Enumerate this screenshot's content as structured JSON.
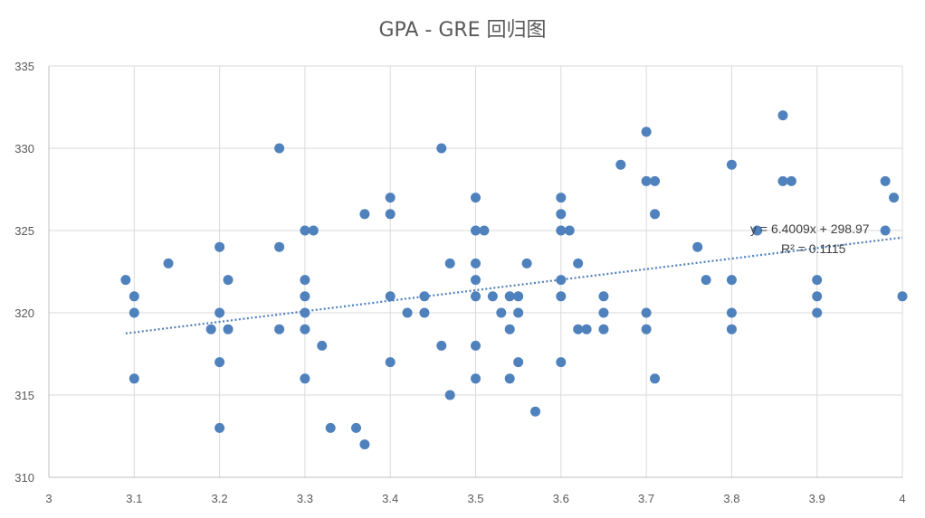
{
  "chart_data": {
    "type": "scatter",
    "title": "GPA - GRE 回归图",
    "xlim": [
      3,
      4
    ],
    "ylim": [
      310,
      335
    ],
    "x_ticks": [
      "3",
      "3.1",
      "3.2",
      "3.3",
      "3.4",
      "3.5",
      "3.6",
      "3.7",
      "3.8",
      "3.9",
      "4"
    ],
    "y_ticks": [
      "310",
      "315",
      "320",
      "325",
      "330",
      "335"
    ],
    "grid": true,
    "marker_color": "#4F81BD",
    "trendline_color": "#4F81BD",
    "trendline": {
      "type": "linear",
      "slope": 6.4009,
      "intercept": 298.97,
      "x_range": [
        3.09,
        4.0
      ],
      "equation": "y = 6.4009x + 298.97",
      "r_squared": "R² = 0.1115"
    },
    "points": [
      [
        3.09,
        322
      ],
      [
        3.1,
        321
      ],
      [
        3.1,
        320
      ],
      [
        3.1,
        316
      ],
      [
        3.14,
        323
      ],
      [
        3.19,
        319
      ],
      [
        3.2,
        324
      ],
      [
        3.2,
        320
      ],
      [
        3.2,
        317
      ],
      [
        3.2,
        313
      ],
      [
        3.21,
        322
      ],
      [
        3.21,
        319
      ],
      [
        3.27,
        330
      ],
      [
        3.27,
        324
      ],
      [
        3.27,
        319
      ],
      [
        3.3,
        325
      ],
      [
        3.31,
        325
      ],
      [
        3.3,
        322
      ],
      [
        3.3,
        321
      ],
      [
        3.3,
        320
      ],
      [
        3.3,
        319
      ],
      [
        3.3,
        316
      ],
      [
        3.32,
        318
      ],
      [
        3.33,
        313
      ],
      [
        3.36,
        313
      ],
      [
        3.37,
        312
      ],
      [
        3.37,
        326
      ],
      [
        3.4,
        327
      ],
      [
        3.4,
        326
      ],
      [
        3.4,
        321
      ],
      [
        3.4,
        317
      ],
      [
        3.42,
        320
      ],
      [
        3.44,
        321
      ],
      [
        3.44,
        320
      ],
      [
        3.46,
        330
      ],
      [
        3.46,
        318
      ],
      [
        3.47,
        323
      ],
      [
        3.47,
        315
      ],
      [
        3.5,
        327
      ],
      [
        3.5,
        325
      ],
      [
        3.51,
        325
      ],
      [
        3.5,
        323
      ],
      [
        3.5,
        322
      ],
      [
        3.5,
        321
      ],
      [
        3.5,
        318
      ],
      [
        3.5,
        316
      ],
      [
        3.52,
        321
      ],
      [
        3.53,
        320
      ],
      [
        3.54,
        321
      ],
      [
        3.54,
        319
      ],
      [
        3.54,
        316
      ],
      [
        3.55,
        321
      ],
      [
        3.55,
        320
      ],
      [
        3.55,
        317
      ],
      [
        3.56,
        323
      ],
      [
        3.57,
        314
      ],
      [
        3.6,
        327
      ],
      [
        3.6,
        326
      ],
      [
        3.6,
        325
      ],
      [
        3.61,
        325
      ],
      [
        3.6,
        322
      ],
      [
        3.6,
        321
      ],
      [
        3.6,
        317
      ],
      [
        3.62,
        323
      ],
      [
        3.62,
        319
      ],
      [
        3.63,
        319
      ],
      [
        3.65,
        321
      ],
      [
        3.65,
        320
      ],
      [
        3.65,
        319
      ],
      [
        3.67,
        329
      ],
      [
        3.7,
        331
      ],
      [
        3.7,
        328
      ],
      [
        3.71,
        328
      ],
      [
        3.71,
        326
      ],
      [
        3.7,
        320
      ],
      [
        3.7,
        319
      ],
      [
        3.71,
        316
      ],
      [
        3.76,
        324
      ],
      [
        3.77,
        322
      ],
      [
        3.8,
        329
      ],
      [
        3.8,
        322
      ],
      [
        3.8,
        320
      ],
      [
        3.8,
        319
      ],
      [
        3.83,
        325
      ],
      [
        3.86,
        332
      ],
      [
        3.86,
        328
      ],
      [
        3.87,
        328
      ],
      [
        3.9,
        322
      ],
      [
        3.9,
        321
      ],
      [
        3.9,
        320
      ],
      [
        3.98,
        328
      ],
      [
        3.98,
        325
      ],
      [
        3.99,
        327
      ],
      [
        4.0,
        321
      ]
    ]
  }
}
